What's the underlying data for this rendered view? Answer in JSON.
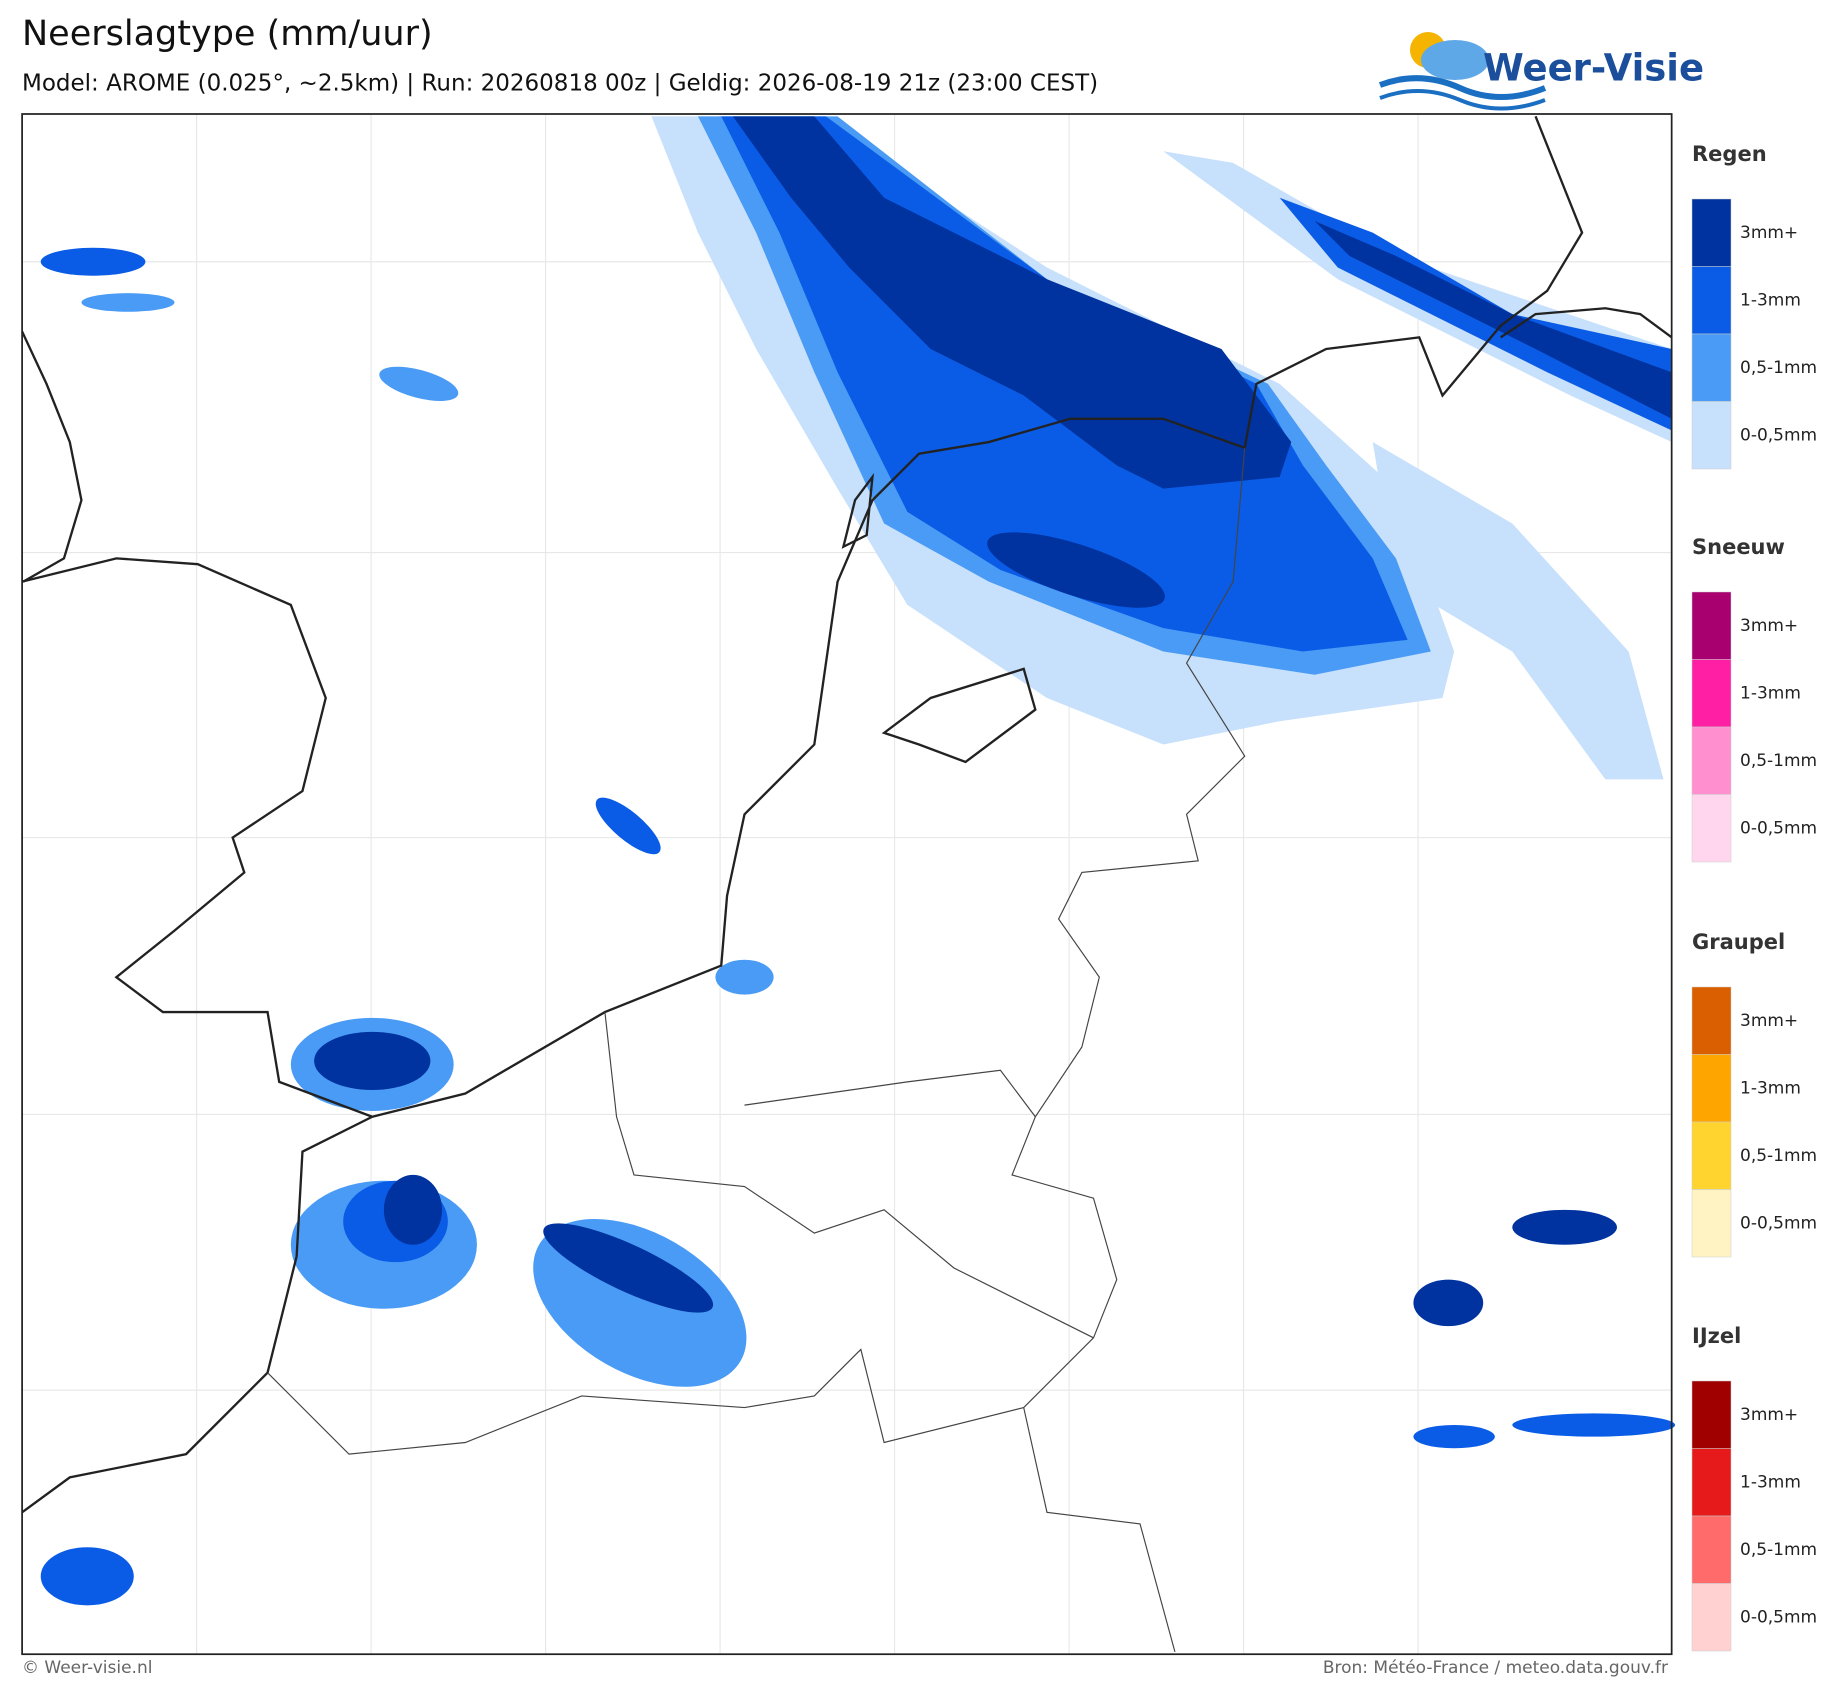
{
  "header": {
    "title": "Neerslagtype (mm/uur)",
    "subtitle": "Model: AROME (0.025°, ~2.5km)  |  Run: 20260818 00z  |  Geldig: 2026-08-19 21z (23:00 CEST)"
  },
  "logo": {
    "text": "Weer-Visie"
  },
  "legend": {
    "groups": [
      {
        "name": "Regen",
        "items": [
          {
            "label": "3mm+",
            "color": "#0033a0"
          },
          {
            "label": "1-3mm",
            "color": "#0a5ce6"
          },
          {
            "label": "0,5-1mm",
            "color": "#4a9bf5"
          },
          {
            "label": "0-0,5mm",
            "color": "#c7e0fb"
          }
        ]
      },
      {
        "name": "Sneeuw",
        "items": [
          {
            "label": "3mm+",
            "color": "#a8006e"
          },
          {
            "label": "1-3mm",
            "color": "#ff1fa5"
          },
          {
            "label": "0,5-1mm",
            "color": "#ff8fce"
          },
          {
            "label": "0-0,5mm",
            "color": "#ffd6ee"
          }
        ]
      },
      {
        "name": "Graupel",
        "items": [
          {
            "label": "3mm+",
            "color": "#d95f00"
          },
          {
            "label": "1-3mm",
            "color": "#ffa500"
          },
          {
            "label": "0,5-1mm",
            "color": "#ffd42e"
          },
          {
            "label": "0-0,5mm",
            "color": "#fff3c4"
          }
        ]
      },
      {
        "name": "IJzel",
        "items": [
          {
            "label": "3mm+",
            "color": "#a10000"
          },
          {
            "label": "1-3mm",
            "color": "#e61a1a"
          },
          {
            "label": "0,5-1mm",
            "color": "#ff6b6b"
          },
          {
            "label": "0-0,5mm",
            "color": "#ffd1d1"
          }
        ]
      }
    ]
  },
  "footer": {
    "left": "© Weer-visie.nl",
    "right": "Bron: Météo-France / meteo.data.gouv.fr"
  }
}
